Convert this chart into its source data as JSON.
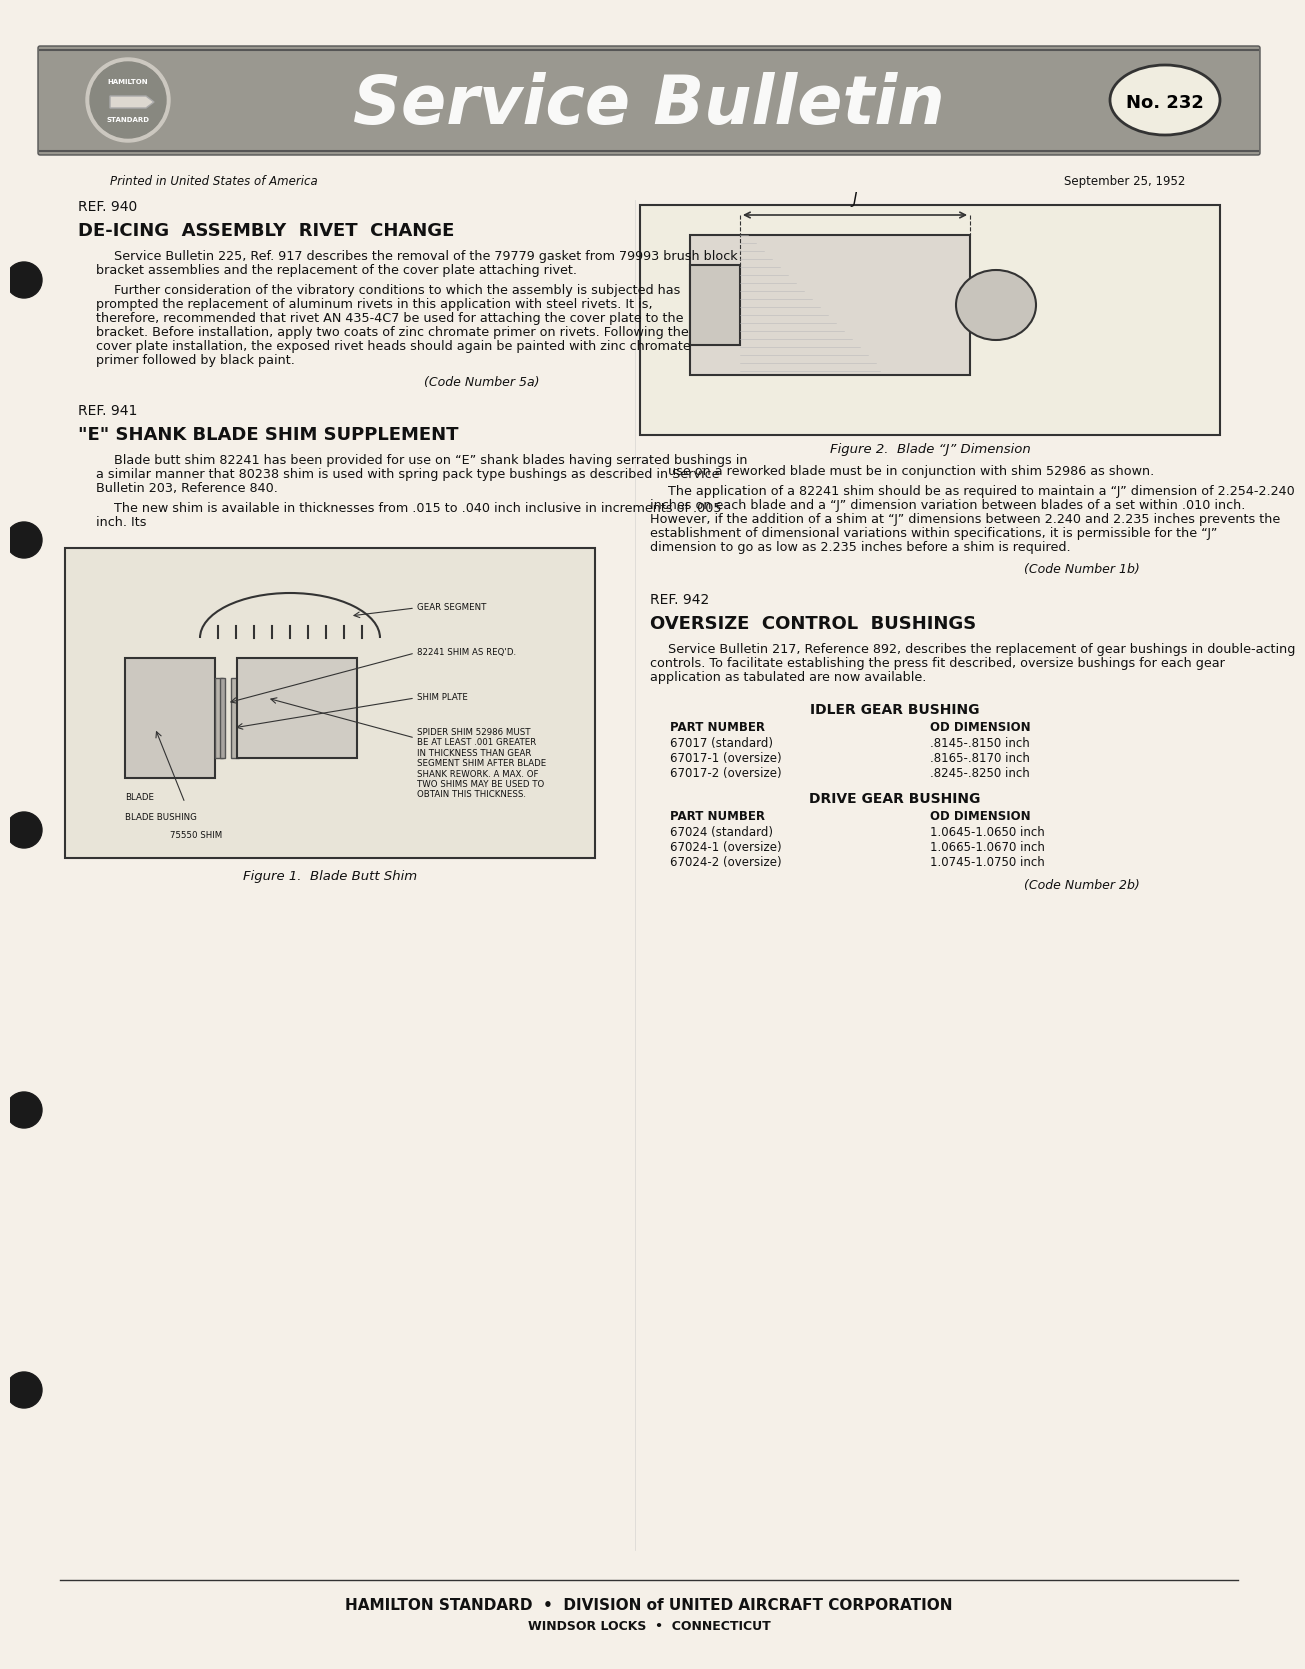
{
  "page_bg": "#f5f0e8",
  "header_bg": "#888880",
  "header_text": "Service Bulletin",
  "bulletin_no": "No. 232",
  "printed_line": "Printed in United States of America",
  "date_line": "September 25, 1952",
  "footer_line1": "HAMILTON STANDARD  •  DIVISION of UNITED AIRCRAFT CORPORATION",
  "footer_line2": "WINDSOR LOCKS  •  CONNECTICUT",
  "ref940_label": "REF. 940",
  "ref940_title": "DE-ICING  ASSEMBLY  RIVET  CHANGE",
  "ref940_body1": "Service Bulletin 225, Ref. 917 describes the removal of the 79779 gasket from 79993 brush block bracket assemblies and the replacement of the cover plate attaching rivet.",
  "ref940_body2": "Further consideration of the vibratory conditions to which the assembly is subjected has prompted the replacement of aluminum rivets in this application with steel rivets. It is, therefore, recommended that rivet AN 435-4C7 be used for attaching the cover plate to the bracket. Before installation, apply two coats of zinc chromate primer on rivets. Following the cover plate installation, the exposed rivet heads should again be painted with zinc chromate primer followed by black paint.",
  "ref940_code": "(Code Number 5a)",
  "ref941_label": "REF. 941",
  "ref941_title": "\"E\" SHANK BLADE SHIM SUPPLEMENT",
  "ref941_body1": "Blade butt shim 82241 has been provided for use on “E” shank blades having serrated bushings in a similar manner that 80238 shim is used with spring pack type bushings as described in Service Bulletin 203, Reference 840.",
  "ref941_body2": "The new shim is available in thicknesses from .015 to .040 inch inclusive in increments of .005 inch. Its",
  "fig2_caption": "Figure 2.  Blade “J” Dimension",
  "fig2_body": "use on a reworked blade must be in conjunction with shim 52986 as shown.",
  "fig2_body2": "The application of a 82241 shim should be as required to maintain a “J” dimension of 2.254-2.240 inches on each blade and a “J” dimension variation between blades of a set within .010 inch. However, if the addition of a shim at “J” dimensions between 2.240 and 2.235 inches prevents the establishment of dimensional variations within specifications, it is permissible for the “J” dimension to go as low as 2.235 inches before a shim is required.",
  "fig2_code": "(Code Number 1b)",
  "ref942_label": "REF. 942",
  "ref942_title": "OVERSIZE  CONTROL  BUSHINGS",
  "ref942_body": "Service Bulletin 217, Reference 892, describes the replacement of gear bushings in double-acting controls. To facilitate establishing the press fit described, oversize bushings for each gear application as tabulated are now available.",
  "idler_title": "IDLER GEAR BUSHING",
  "idler_col1": "PART NUMBER",
  "idler_col2": "OD DIMENSION",
  "idler_rows": [
    [
      "67017 (standard)",
      ".8145-.8150 inch"
    ],
    [
      "67017-1 (oversize)",
      ".8165-.8170 inch"
    ],
    [
      "67017-2 (oversize)",
      ".8245-.8250 inch"
    ]
  ],
  "drive_title": "DRIVE GEAR BUSHING",
  "drive_col1": "PART NUMBER",
  "drive_col2": "OD DIMENSION",
  "drive_rows": [
    [
      "67024 (standard)",
      "1.0645-1.0650 inch"
    ],
    [
      "67024-1 (oversize)",
      "1.0665-1.0670 inch"
    ],
    [
      "67024-2 (oversize)",
      "1.0745-1.0750 inch"
    ]
  ],
  "ref942_code": "(Code Number 2b)",
  "fig1_caption": "Figure 1.  Blade Butt Shim",
  "hole_color": "#1a1a1a"
}
